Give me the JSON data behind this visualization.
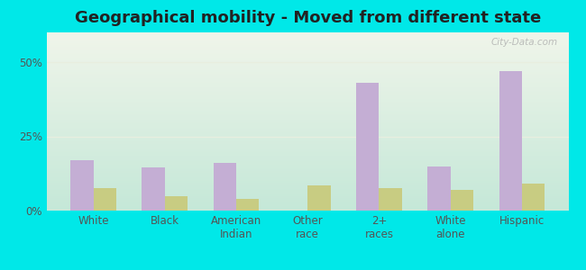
{
  "title": "Geographical mobility - Moved from different state",
  "categories": [
    "White",
    "Black",
    "American\nIndian",
    "Other\nrace",
    "2+\nraces",
    "White\nalone",
    "Hispanic"
  ],
  "laurel_bay": [
    17.0,
    14.5,
    16.0,
    0.0,
    43.0,
    15.0,
    47.0
  ],
  "south_carolina": [
    7.5,
    5.0,
    4.0,
    8.5,
    7.5,
    7.0,
    9.0
  ],
  "bar_color_laurel": "#c4aed4",
  "bar_color_sc": "#c8cc82",
  "background_outer": "#00e8e8",
  "background_inner_top": "#f0f5ea",
  "background_inner_bottom": "#c5e8d8",
  "grid_color": "#e8eedf",
  "yticks": [
    0,
    25,
    50
  ],
  "ylim": [
    0,
    60
  ],
  "bar_width": 0.32,
  "title_fontsize": 13,
  "axis_label_fontsize": 8.5,
  "tick_fontsize": 8.5,
  "legend_fontsize": 9
}
